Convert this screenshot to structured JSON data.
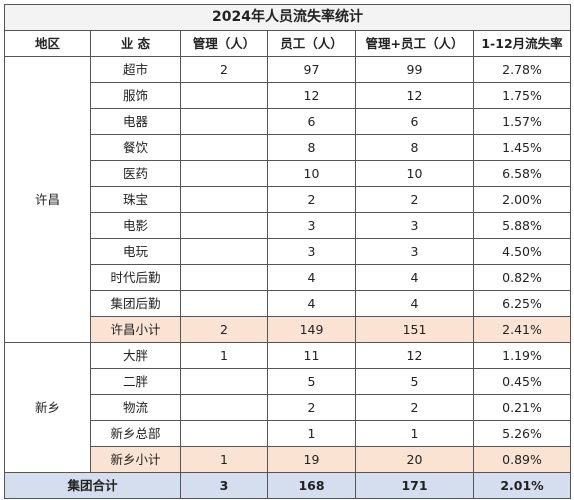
{
  "title": "2024年人员流失率统计",
  "headers": [
    "地区",
    "业 态",
    "管理（人）",
    "员工（人）",
    "管理+员工（人）",
    "1-12月流失率"
  ],
  "regions": [
    {
      "name": "许昌",
      "rows": [
        {
          "type": "超市",
          "mgmt": "2",
          "staff": "97",
          "sum": "99",
          "rate": "2.78%"
        },
        {
          "type": "服饰",
          "mgmt": "",
          "staff": "12",
          "sum": "12",
          "rate": "1.75%"
        },
        {
          "type": "电器",
          "mgmt": "",
          "staff": "6",
          "sum": "6",
          "rate": "1.57%"
        },
        {
          "type": "餐饮",
          "mgmt": "",
          "staff": "8",
          "sum": "8",
          "rate": "1.45%"
        },
        {
          "type": "医药",
          "mgmt": "",
          "staff": "10",
          "sum": "10",
          "rate": "6.58%"
        },
        {
          "type": "珠宝",
          "mgmt": "",
          "staff": "2",
          "sum": "2",
          "rate": "2.00%"
        },
        {
          "type": "电影",
          "mgmt": "",
          "staff": "3",
          "sum": "3",
          "rate": "5.88%"
        },
        {
          "type": "电玩",
          "mgmt": "",
          "staff": "3",
          "sum": "3",
          "rate": "4.50%"
        },
        {
          "type": "时代后勤",
          "mgmt": "",
          "staff": "4",
          "sum": "4",
          "rate": "0.82%"
        },
        {
          "type": "集团后勤",
          "mgmt": "",
          "staff": "4",
          "sum": "4",
          "rate": "6.25%"
        }
      ],
      "subtotal": {
        "type": "许昌小计",
        "mgmt": "2",
        "staff": "149",
        "sum": "151",
        "rate": "2.41%"
      }
    },
    {
      "name": "新乡",
      "rows": [
        {
          "type": "大胖",
          "mgmt": "1",
          "staff": "11",
          "sum": "12",
          "rate": "1.19%"
        },
        {
          "type": "二胖",
          "mgmt": "",
          "staff": "5",
          "sum": "5",
          "rate": "0.45%"
        },
        {
          "type": "物流",
          "mgmt": "",
          "staff": "2",
          "sum": "2",
          "rate": "0.21%"
        },
        {
          "type": "新乡总部",
          "mgmt": "",
          "staff": "1",
          "sum": "1",
          "rate": "5.26%"
        }
      ],
      "subtotal": {
        "type": "新乡小计",
        "mgmt": "1",
        "staff": "19",
        "sum": "20",
        "rate": "0.89%"
      }
    }
  ],
  "total": {
    "label": "集团合计",
    "mgmt": "3",
    "staff": "168",
    "sum": "171",
    "rate": "2.01%"
  },
  "colors": {
    "subtotal_bg": "#fbe3d4",
    "total_bg": "#d5deee",
    "title_bg": "#f3f3f3"
  }
}
